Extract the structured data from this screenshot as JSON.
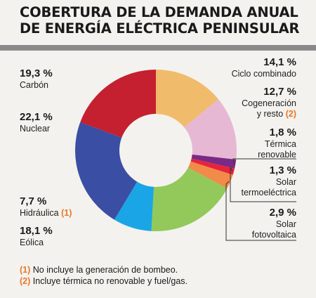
{
  "title": {
    "line1": "COBERTURA DE LA DEMANDA ANUAL",
    "line2": "DE ENERGÍA ELÉCTRICA PENINSULAR"
  },
  "chart_data": {
    "type": "pie",
    "donut": true,
    "slices": [
      {
        "label": "Ciclo combinado",
        "value": 14.1,
        "value_text": "14,1 %",
        "color": "#f0bc6c"
      },
      {
        "label": "Cogeneración y resto",
        "label_line1": "Cogeneración",
        "label_line2": "y resto",
        "note": "(2)",
        "value": 12.7,
        "value_text": "12,7 %",
        "color": "#e6b8d4"
      },
      {
        "label": "Térmica renovable",
        "label_line1": "Térmica",
        "label_line2": "renovable",
        "value": 1.8,
        "value_text": "1,8 %",
        "color": "#7a2a86"
      },
      {
        "label": "Solar termoeléctrica",
        "label_line1": "Solar",
        "label_line2": "termoeléctrica",
        "value": 1.3,
        "value_text": "1,3 %",
        "color": "#e8233a"
      },
      {
        "label": "Solar fotovoltaica",
        "label_line1": "Solar",
        "label_line2": "fotovoltaica",
        "value": 2.9,
        "value_text": "2,9 %",
        "color": "#f28a4a"
      },
      {
        "label": "Eólica",
        "value": 18.1,
        "value_text": "18,1 %",
        "color": "#92c95a"
      },
      {
        "label": "Hidráulica",
        "note": "(1)",
        "value": 7.7,
        "value_text": "7,7 %",
        "color": "#1aa5e6"
      },
      {
        "label": "Nuclear",
        "value": 22.1,
        "value_text": "22,1 %",
        "color": "#3a4ea3"
      },
      {
        "label": "Carbón",
        "value": 19.3,
        "value_text": "19,3 %",
        "color": "#c42030"
      }
    ]
  },
  "footnotes": [
    {
      "num": "(1)",
      "text": "No incluye la generación de bombeo."
    },
    {
      "num": "(2)",
      "text": "Incluye térmica no renovable y fuel/gas."
    }
  ]
}
